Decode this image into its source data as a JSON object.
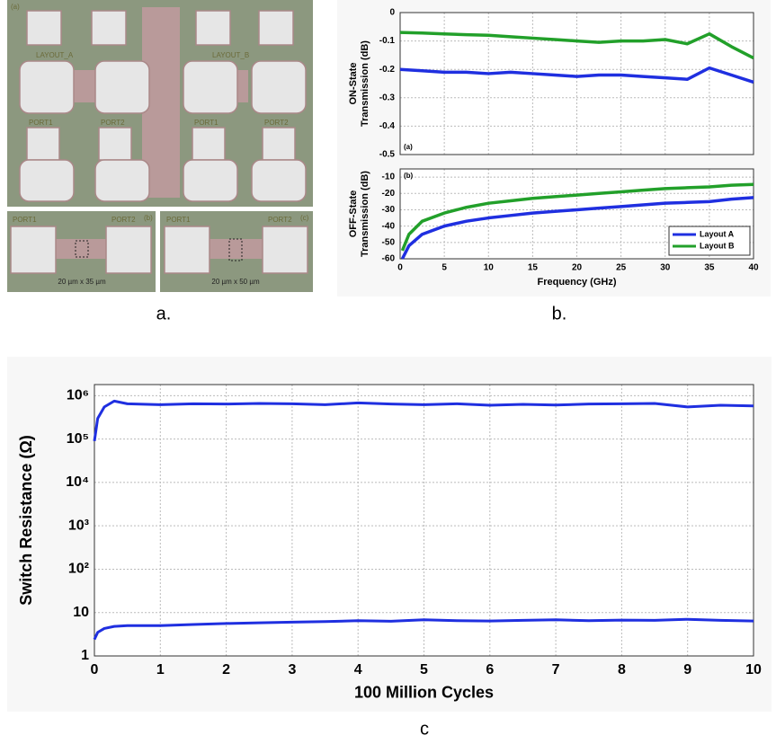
{
  "micrograph": {
    "main": {
      "label": "(a)",
      "layout_labels": [
        "LAYOUT_A",
        "LAYOUT_B"
      ],
      "port_labels": [
        "PORT1",
        "PORT2",
        "PORT1",
        "PORT2"
      ]
    },
    "insets": [
      {
        "label": "(b)",
        "port_labels": [
          "PORT1",
          "PORT2"
        ],
        "dimension": "20 µm x 35 µm"
      },
      {
        "label": "(c)",
        "port_labels": [
          "PORT1",
          "PORT2"
        ],
        "dimension": "20 µm x 50 µm"
      }
    ]
  },
  "panel_captions": [
    "a.",
    "b.",
    "c"
  ],
  "chart_data": [
    {
      "type": "line",
      "ylabel": [
        "ON-State",
        "Transmission (dB)"
      ],
      "annotation": "(a)",
      "x": [
        0,
        2.5,
        5,
        7.5,
        10,
        12.5,
        15,
        17.5,
        20,
        22.5,
        25,
        27.5,
        30,
        32.5,
        35,
        37.5,
        40
      ],
      "series": [
        {
          "color": "#1f2fe0",
          "values": [
            -0.2,
            -0.205,
            -0.21,
            -0.21,
            -0.215,
            -0.21,
            -0.215,
            -0.22,
            -0.225,
            -0.22,
            -0.22,
            -0.225,
            -0.23,
            -0.235,
            -0.195,
            -0.22,
            -0.245
          ]
        },
        {
          "color": "#22a02a",
          "values": [
            -0.07,
            -0.072,
            -0.075,
            -0.078,
            -0.08,
            -0.085,
            -0.09,
            -0.095,
            -0.1,
            -0.105,
            -0.1,
            -0.1,
            -0.095,
            -0.11,
            -0.075,
            -0.12,
            -0.16
          ]
        }
      ],
      "xlim": [
        0,
        40
      ],
      "xticks": [
        0,
        5,
        10,
        15,
        20,
        25,
        30,
        35,
        40
      ],
      "ylim": [
        -0.5,
        0
      ],
      "yticks": [
        0,
        -0.1,
        -0.2,
        -0.3,
        -0.4,
        -0.5
      ],
      "grid": true
    },
    {
      "type": "line",
      "ylabel": [
        "OFF-State",
        "Transmission (dB)"
      ],
      "xlabel": "Frequency (GHz)",
      "annotation": "(b)",
      "x": [
        0.25,
        1,
        2.5,
        5,
        7.5,
        10,
        12.5,
        15,
        17.5,
        20,
        22.5,
        25,
        27.5,
        30,
        32.5,
        35,
        37.5,
        40
      ],
      "series": [
        {
          "name": "Layout A",
          "color": "#1f2fe0",
          "values": [
            -60,
            -52,
            -45,
            -40,
            -37,
            -35,
            -33.5,
            -32,
            -31,
            -30,
            -29,
            -28,
            -27,
            -26,
            -25.5,
            -25,
            -23.5,
            -22.5
          ]
        },
        {
          "name": "Layout B",
          "color": "#22a02a",
          "values": [
            -55,
            -45,
            -37,
            -32,
            -28.5,
            -26,
            -24.5,
            -23,
            -22,
            -21,
            -20,
            -19,
            -18,
            -17,
            -16.5,
            -16,
            -15,
            -14.5
          ]
        }
      ],
      "xlim": [
        0,
        40
      ],
      "xticks": [
        0,
        5,
        10,
        15,
        20,
        25,
        30,
        35,
        40
      ],
      "ylim": [
        -60,
        -5
      ],
      "yticks": [
        -10,
        -20,
        -30,
        -40,
        -50,
        -60
      ],
      "grid": true,
      "legend": "lower right"
    },
    {
      "type": "line",
      "ylabel": "Switch Resistance (Ω)",
      "xlabel": "100 Million Cycles",
      "ylog": true,
      "x": [
        0,
        0.05,
        0.15,
        0.3,
        0.5,
        1,
        1.5,
        2,
        2.5,
        3,
        3.5,
        4,
        4.5,
        5,
        5.5,
        6,
        6.5,
        7,
        7.5,
        8,
        8.5,
        9,
        9.5,
        10
      ],
      "series": [
        {
          "color": "#1f2fe0",
          "values": [
            90000,
            300000,
            550000,
            750000,
            650000,
            620000,
            650000,
            640000,
            660000,
            650000,
            620000,
            680000,
            640000,
            620000,
            650000,
            600000,
            630000,
            610000,
            640000,
            650000,
            660000,
            550000,
            600000,
            580000
          ]
        },
        {
          "color": "#1f2fe0",
          "values": [
            2.4,
            3.5,
            4.3,
            4.8,
            5,
            5,
            5.3,
            5.6,
            5.8,
            6,
            6.2,
            6.5,
            6.3,
            6.8,
            6.5,
            6.4,
            6.6,
            6.8,
            6.5,
            6.7,
            6.6,
            7,
            6.6,
            6.4
          ]
        }
      ],
      "xlim": [
        0,
        10
      ],
      "xticks": [
        0,
        1,
        2,
        3,
        4,
        5,
        6,
        7,
        8,
        9,
        10
      ],
      "ylim": [
        1,
        1800000
      ],
      "yticks": [
        1,
        10,
        {
          "value": 100,
          "label": "10²"
        },
        {
          "value": 1000,
          "label": "10³"
        },
        {
          "value": 10000,
          "label": "10⁴"
        },
        {
          "value": 100000,
          "label": "10⁵"
        },
        {
          "value": 1000000,
          "label": "10⁶"
        }
      ],
      "grid": true
    }
  ]
}
